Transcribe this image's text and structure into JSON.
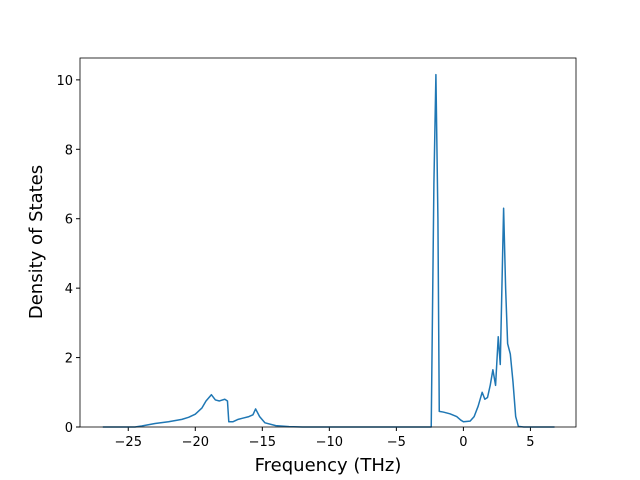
{
  "chart_data": {
    "type": "line",
    "xlabel": "Frequency (THz)",
    "ylabel": "Density of States",
    "xlim": [
      -28.6,
      8.4
    ],
    "ylim": [
      0,
      10.63
    ],
    "xticks": [
      {
        "value": -25,
        "label": "−25"
      },
      {
        "value": -20,
        "label": "−20"
      },
      {
        "value": -15,
        "label": "−15"
      },
      {
        "value": -10,
        "label": "−10"
      },
      {
        "value": -5,
        "label": "−5"
      },
      0,
      5
    ],
    "yticks": [
      0,
      2,
      4,
      6,
      8,
      10
    ],
    "series": [
      {
        "color": "#1f77b4",
        "x": [
          -26.9,
          -24.5,
          -24,
          -23,
          -22,
          -21,
          -20.5,
          -20,
          -19.5,
          -19.2,
          -18.8,
          -18.5,
          -18.2,
          -17.8,
          -17.6,
          -17.5,
          -17.2,
          -16.8,
          -16.5,
          -16,
          -15.7,
          -15.5,
          -15.2,
          -14.8,
          -14,
          -13,
          -12,
          -2.4,
          -2.2,
          -2.05,
          -1.9,
          -1.8,
          -1.5,
          -1,
          -0.5,
          -0.2,
          0,
          0.5,
          0.8,
          1.1,
          1.4,
          1.6,
          1.8,
          2.0,
          2.2,
          2.4,
          2.6,
          2.75,
          3.0,
          3.15,
          3.3,
          3.5,
          3.7,
          3.9,
          4.1,
          4.5,
          6.8
        ],
        "values": [
          0,
          0,
          0.03,
          0.1,
          0.15,
          0.22,
          0.28,
          0.37,
          0.55,
          0.75,
          0.93,
          0.78,
          0.75,
          0.8,
          0.75,
          0.15,
          0.15,
          0.22,
          0.25,
          0.3,
          0.35,
          0.52,
          0.3,
          0.12,
          0.04,
          0.01,
          0,
          0,
          7,
          10.15,
          6,
          0.45,
          0.43,
          0.38,
          0.3,
          0.2,
          0.15,
          0.17,
          0.3,
          0.6,
          1.0,
          0.8,
          0.85,
          1.2,
          1.65,
          1.2,
          2.6,
          1.8,
          6.3,
          4,
          2.4,
          2.1,
          1.3,
          0.3,
          0.02,
          0,
          0
        ]
      }
    ]
  }
}
